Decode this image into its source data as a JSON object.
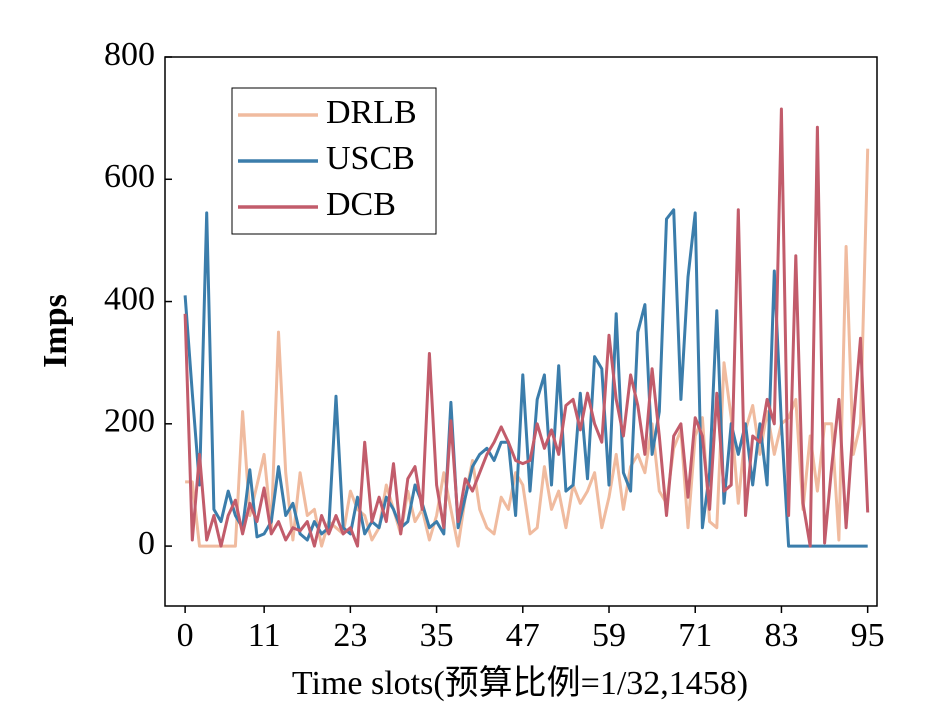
{
  "chart_data": {
    "type": "line",
    "xlabel": "Time slots(预算比例=1/32,1458)",
    "ylabel": "Imps",
    "x": [
      0,
      1,
      2,
      3,
      4,
      5,
      6,
      7,
      8,
      9,
      10,
      11,
      12,
      13,
      14,
      15,
      16,
      17,
      18,
      19,
      20,
      21,
      22,
      23,
      24,
      25,
      26,
      27,
      28,
      29,
      30,
      31,
      32,
      33,
      34,
      35,
      36,
      37,
      38,
      39,
      40,
      41,
      42,
      43,
      44,
      45,
      46,
      47,
      48,
      49,
      50,
      51,
      52,
      53,
      54,
      55,
      56,
      57,
      58,
      59,
      60,
      61,
      62,
      63,
      64,
      65,
      66,
      67,
      68,
      69,
      70,
      71,
      72,
      73,
      74,
      75,
      76,
      77,
      78,
      79,
      80,
      81,
      82,
      83,
      84,
      85,
      86,
      87,
      88,
      89,
      90,
      91,
      92,
      93,
      94,
      95
    ],
    "series": [
      {
        "name": "DRLB",
        "color": "#f0bb9f",
        "values": [
          105,
          105,
          0,
          0,
          0,
          0,
          0,
          0,
          220,
          50,
          100,
          150,
          30,
          350,
          120,
          10,
          120,
          50,
          60,
          0,
          40,
          30,
          20,
          90,
          60,
          50,
          10,
          30,
          100,
          60,
          20,
          90,
          40,
          60,
          10,
          50,
          120,
          60,
          0,
          80,
          140,
          60,
          30,
          20,
          80,
          60,
          120,
          100,
          20,
          30,
          130,
          60,
          90,
          30,
          100,
          70,
          90,
          120,
          30,
          80,
          150,
          60,
          130,
          150,
          120,
          200,
          90,
          70,
          160,
          190,
          30,
          180,
          210,
          40,
          30,
          300,
          210,
          70,
          190,
          230,
          150,
          220,
          150,
          200,
          210,
          240,
          60,
          180,
          90,
          200,
          200,
          10,
          490,
          150,
          200,
          650
        ]
      },
      {
        "name": "USCB",
        "color": "#3b7dab",
        "values": [
          410,
          250,
          100,
          545,
          60,
          40,
          90,
          50,
          30,
          125,
          15,
          20,
          40,
          130,
          50,
          70,
          20,
          10,
          40,
          20,
          30,
          245,
          30,
          20,
          80,
          20,
          40,
          30,
          80,
          60,
          30,
          40,
          100,
          70,
          30,
          40,
          20,
          235,
          30,
          80,
          130,
          150,
          160,
          140,
          170,
          170,
          50,
          280,
          90,
          240,
          280,
          100,
          295,
          90,
          100,
          250,
          110,
          310,
          290,
          100,
          380,
          120,
          90,
          350,
          395,
          150,
          220,
          535,
          550,
          240,
          440,
          545,
          30,
          120,
          385,
          70,
          200,
          150,
          200,
          100,
          200,
          100,
          450,
          200,
          0,
          0,
          0,
          0,
          0,
          0,
          0,
          0,
          0,
          0,
          0,
          0
        ]
      },
      {
        "name": "DCB",
        "color": "#c25c6b",
        "values": [
          380,
          10,
          150,
          10,
          50,
          0,
          50,
          75,
          20,
          70,
          40,
          95,
          20,
          40,
          10,
          30,
          25,
          40,
          0,
          50,
          20,
          50,
          20,
          30,
          0,
          170,
          40,
          80,
          40,
          135,
          20,
          110,
          130,
          60,
          315,
          100,
          30,
          205,
          40,
          110,
          90,
          120,
          150,
          170,
          195,
          170,
          140,
          135,
          140,
          200,
          160,
          190,
          150,
          230,
          240,
          190,
          250,
          200,
          170,
          345,
          240,
          180,
          280,
          230,
          150,
          290,
          180,
          50,
          180,
          200,
          80,
          210,
          180,
          60,
          250,
          90,
          100,
          550,
          50,
          180,
          170,
          240,
          200,
          715,
          50,
          475,
          70,
          0,
          685,
          5,
          130,
          240,
          30,
          200,
          340,
          55
        ]
      }
    ],
    "xlim": [
      -2.8,
      96.3
    ],
    "xticks": [
      0,
      11,
      23,
      35,
      47,
      59,
      71,
      83,
      95
    ],
    "ylim": [
      -98,
      800
    ],
    "yticks": [
      0,
      200,
      400,
      600,
      800
    ],
    "legend": "upper-left"
  }
}
